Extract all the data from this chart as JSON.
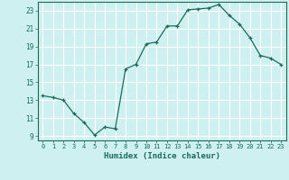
{
  "x": [
    0,
    1,
    2,
    3,
    4,
    5,
    6,
    7,
    8,
    9,
    10,
    11,
    12,
    13,
    14,
    15,
    16,
    17,
    18,
    19,
    20,
    21,
    22,
    23
  ],
  "y": [
    13.5,
    13.3,
    13.0,
    11.5,
    10.5,
    9.1,
    10.0,
    9.8,
    16.5,
    17.0,
    19.3,
    19.5,
    21.3,
    21.3,
    23.1,
    23.2,
    23.3,
    23.7,
    22.5,
    21.5,
    20.0,
    18.0,
    17.7,
    17.0
  ],
  "ylim": [
    8.5,
    24.0
  ],
  "xlim": [
    -0.5,
    23.5
  ],
  "yticks": [
    9,
    11,
    13,
    15,
    17,
    19,
    21,
    23
  ],
  "xticks": [
    0,
    1,
    2,
    3,
    4,
    5,
    6,
    7,
    8,
    9,
    10,
    11,
    12,
    13,
    14,
    15,
    16,
    17,
    18,
    19,
    20,
    21,
    22,
    23
  ],
  "xlabel": "Humidex (Indice chaleur)",
  "line_color": "#1a6b5a",
  "marker": "+",
  "bg_color": "#cff0f0",
  "grid_color": "#ffffff",
  "text_color": "#1a6b5a"
}
